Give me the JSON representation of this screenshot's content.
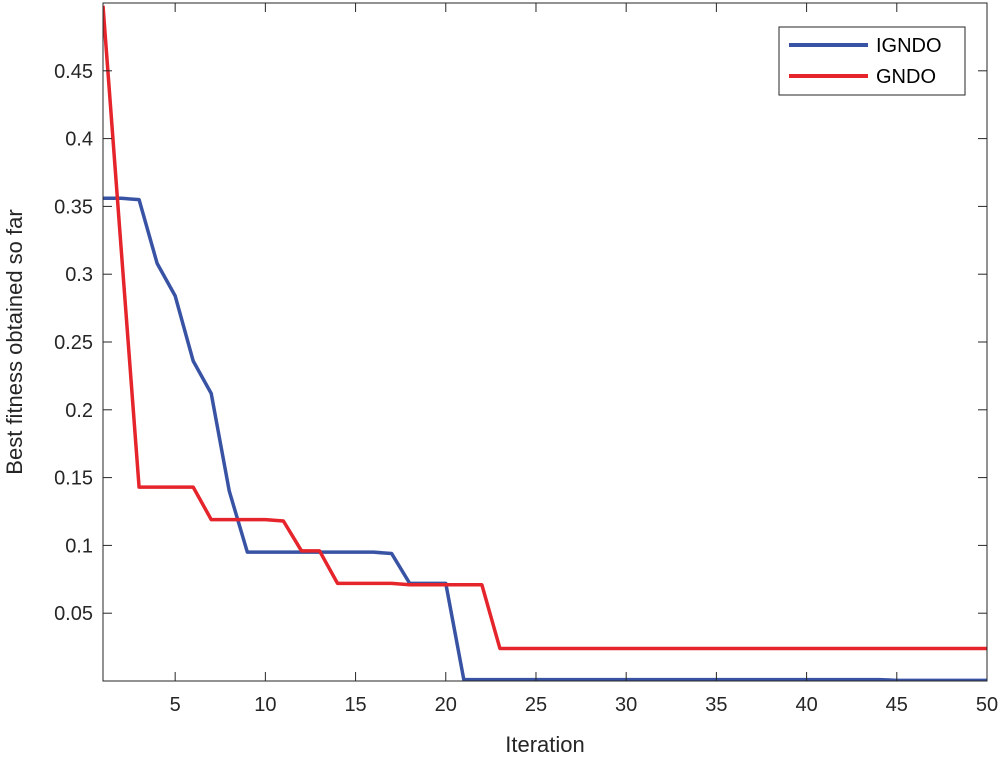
{
  "chart_data": {
    "type": "line",
    "title": "",
    "xlabel": "Iteration",
    "ylabel": "Best fitness obtained so far",
    "xlim": [
      1,
      50
    ],
    "ylim": [
      0,
      0.5
    ],
    "xticks": [
      5,
      10,
      15,
      20,
      25,
      30,
      35,
      40,
      45,
      50
    ],
    "yticks": [
      0.05,
      0.1,
      0.15,
      0.2,
      0.25,
      0.3,
      0.35,
      0.4,
      0.45
    ],
    "ytick_labels": [
      "0.05",
      "0.1",
      "0.15",
      "0.2",
      "0.25",
      "0.3",
      "0.35",
      "0.4",
      "0.45"
    ],
    "grid": false,
    "legend_position": "top-right",
    "x": [
      1,
      2,
      3,
      4,
      5,
      6,
      7,
      8,
      9,
      10,
      11,
      12,
      13,
      14,
      15,
      16,
      17,
      18,
      19,
      20,
      21,
      22,
      23,
      24,
      25,
      26,
      27,
      28,
      29,
      30,
      31,
      32,
      33,
      34,
      35,
      36,
      37,
      38,
      39,
      40,
      41,
      42,
      43,
      44,
      45,
      46,
      47,
      48,
      49,
      50
    ],
    "series": [
      {
        "name": "IGNDO",
        "color": "#3953a4",
        "values": [
          0.356,
          0.356,
          0.355,
          0.308,
          0.284,
          0.236,
          0.212,
          0.14,
          0.095,
          0.095,
          0.095,
          0.095,
          0.095,
          0.095,
          0.095,
          0.095,
          0.094,
          0.072,
          0.072,
          0.072,
          0.001,
          0.001,
          0.001,
          0.001,
          0.001,
          0.001,
          0.001,
          0.001,
          0.001,
          0.001,
          0.001,
          0.001,
          0.001,
          0.001,
          0.001,
          0.001,
          0.001,
          0.001,
          0.001,
          0.001,
          0.001,
          0.001,
          0.001,
          0.001,
          0.0005,
          0.0005,
          0.0005,
          0.0005,
          0.0005,
          0.0005
        ]
      },
      {
        "name": "GNDO",
        "color": "#e5242b",
        "values": [
          0.498,
          0.32,
          0.143,
          0.143,
          0.143,
          0.143,
          0.119,
          0.119,
          0.119,
          0.119,
          0.118,
          0.096,
          0.096,
          0.072,
          0.072,
          0.072,
          0.072,
          0.071,
          0.071,
          0.071,
          0.071,
          0.071,
          0.024,
          0.024,
          0.024,
          0.024,
          0.024,
          0.024,
          0.024,
          0.024,
          0.024,
          0.024,
          0.024,
          0.024,
          0.024,
          0.024,
          0.024,
          0.024,
          0.024,
          0.024,
          0.024,
          0.024,
          0.024,
          0.024,
          0.024,
          0.024,
          0.024,
          0.024,
          0.024,
          0.024
        ]
      }
    ]
  }
}
